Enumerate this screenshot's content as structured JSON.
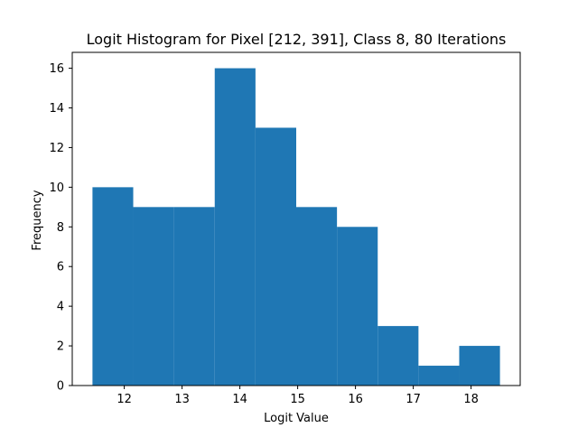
{
  "chart_data": {
    "type": "histogram",
    "title": "Logit Histogram for Pixel [212, 391], Class 8, 80 Iterations",
    "xlabel": "Logit Value",
    "ylabel": "Frequency",
    "bin_edges": [
      11.45,
      12.155,
      12.86,
      13.565,
      14.27,
      14.975,
      15.68,
      16.385,
      17.09,
      17.795,
      18.5
    ],
    "values": [
      10,
      9,
      9,
      16,
      13,
      9,
      8,
      3,
      1,
      2
    ],
    "xlim": [
      11.1,
      18.85
    ],
    "ylim": [
      0,
      16.8
    ],
    "xticks": [
      12,
      13,
      14,
      15,
      16,
      17,
      18
    ],
    "yticks": [
      0,
      2,
      4,
      6,
      8,
      10,
      12,
      14,
      16
    ],
    "bar_color": "#1f77b4",
    "grid": false,
    "legend": "none"
  }
}
